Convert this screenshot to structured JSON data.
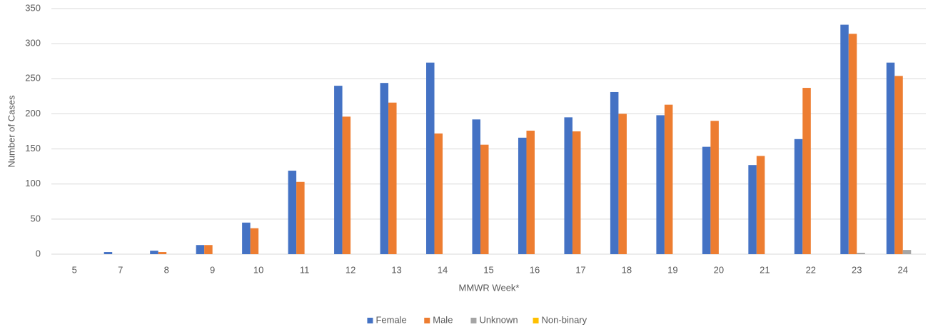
{
  "chart_data": {
    "type": "bar",
    "x_label": "MMWR Week*",
    "y_label": "Number of Cases",
    "categories": [
      "5",
      "7",
      "8",
      "9",
      "10",
      "11",
      "12",
      "13",
      "14",
      "15",
      "16",
      "17",
      "18",
      "19",
      "20",
      "21",
      "22",
      "23",
      "24"
    ],
    "series": [
      {
        "name": "Female",
        "color": "#4472c4",
        "values": [
          0,
          3,
          5,
          13,
          45,
          119,
          240,
          244,
          273,
          192,
          166,
          195,
          231,
          198,
          153,
          127,
          164,
          327,
          273
        ]
      },
      {
        "name": "Male",
        "color": "#ed7d31",
        "values": [
          0,
          0,
          3,
          13,
          37,
          103,
          196,
          216,
          172,
          156,
          176,
          175,
          200,
          213,
          190,
          140,
          237,
          314,
          254
        ]
      },
      {
        "name": "Unknown",
        "color": "#a5a5a5",
        "values": [
          0,
          0,
          0,
          0,
          0,
          0,
          0,
          0,
          0,
          0,
          0,
          0,
          0,
          0,
          0,
          0,
          0,
          2,
          6
        ]
      },
      {
        "name": "Non-binary",
        "color": "#ffc000",
        "values": [
          0,
          0,
          0,
          0,
          0,
          0,
          0,
          0,
          0,
          0,
          0,
          0,
          0,
          0,
          0,
          0,
          0,
          0,
          0
        ]
      }
    ],
    "ylim": [
      0,
      350
    ],
    "yticks": [
      0,
      50,
      100,
      150,
      200,
      250,
      300,
      350
    ],
    "grid": true,
    "legend": "bottom"
  }
}
